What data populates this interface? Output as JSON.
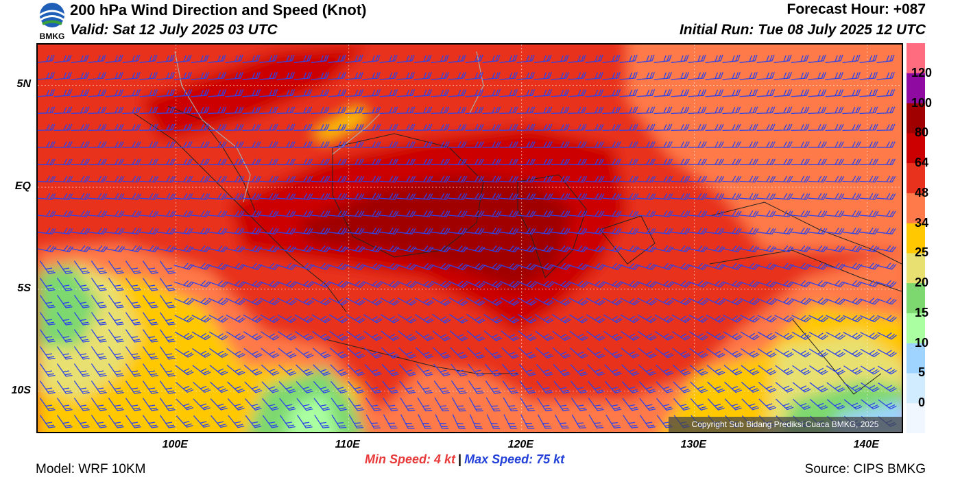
{
  "header": {
    "title": "200 hPa Wind Direction and Speed (Knot)",
    "valid": "Valid: Sat 12 July 2025 03 UTC",
    "forecast_hour": "Forecast Hour: +087",
    "initial_run": "Initial Run: Tue 08 July 2025 12 UTC",
    "logo_text": "BMKG"
  },
  "map": {
    "lat_labels": [
      "5N",
      "EQ",
      "5S",
      "10S"
    ],
    "lat_values": [
      5,
      0,
      -5,
      -10
    ],
    "lon_labels": [
      "100E",
      "110E",
      "120E",
      "130E",
      "140E"
    ],
    "lon_values": [
      100,
      110,
      120,
      130,
      140
    ],
    "extent": {
      "lon_min": 92,
      "lon_max": 142,
      "lat_min": -12,
      "lat_max": 7
    },
    "copyright": "Copyright Sub Bidang Prediksi Cuaca BMKG, 2025",
    "barb_color": "#2e44e8"
  },
  "colorbar": {
    "labels": [
      "120",
      "100",
      "80",
      "64",
      "48",
      "34",
      "25",
      "20",
      "15",
      "10",
      "5",
      "0"
    ],
    "colors": [
      "#ff6b7f",
      "#8e0aa0",
      "#a00000",
      "#cc0000",
      "#e8321e",
      "#ff7a4a",
      "#ffc800",
      "#e8e070",
      "#7ed870",
      "#aaffa0",
      "#9ed4ff",
      "#d2ecff",
      "#f0f7ff"
    ]
  },
  "footer": {
    "min_speed": "Min Speed:   4 kt",
    "separator": "|",
    "max_speed": "Max Speed:  75 kt",
    "model": "Model: WRF 10KM",
    "source": "Source: CIPS BMKG"
  }
}
